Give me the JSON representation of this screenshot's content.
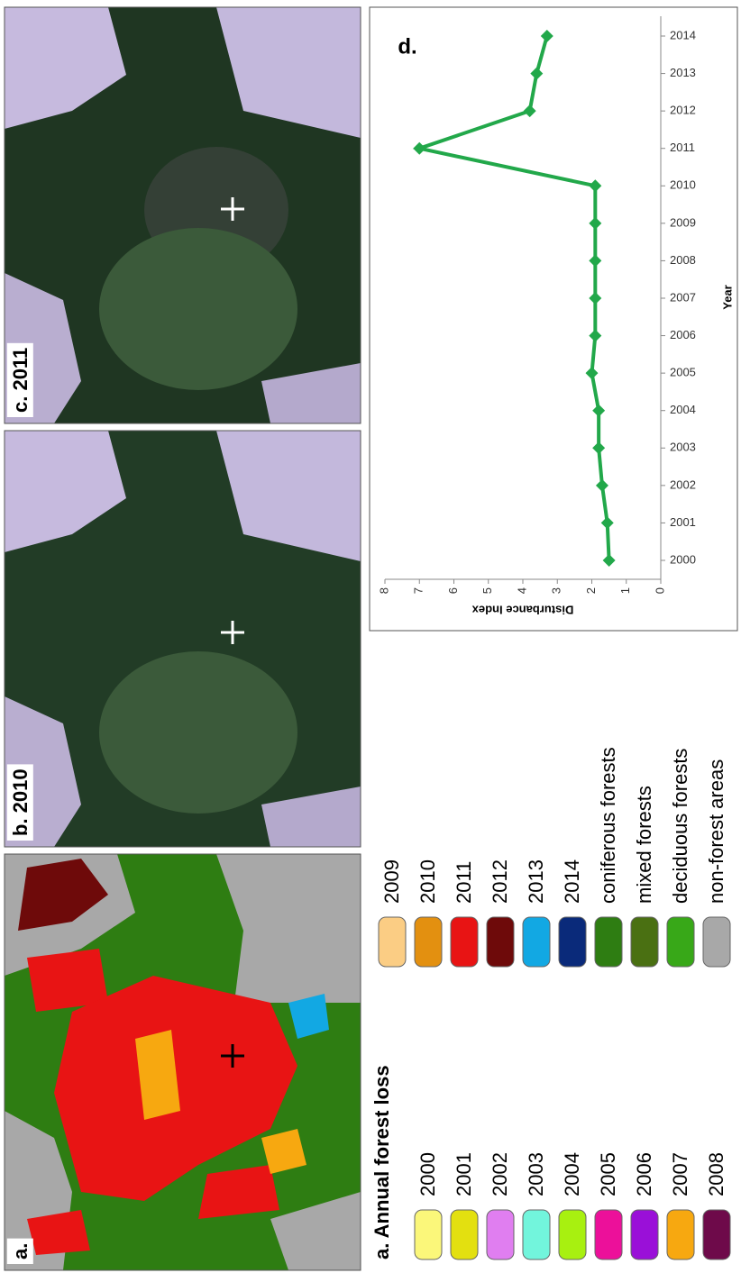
{
  "panels": [
    {
      "label": "a."
    },
    {
      "label": "b. 2010"
    },
    {
      "label": "c. 2011"
    }
  ],
  "legend": {
    "title": "a. Annual forest loss",
    "items": [
      {
        "label": "2000",
        "color": "#fbf77a"
      },
      {
        "label": "2001",
        "color": "#e3e010"
      },
      {
        "label": "2002",
        "color": "#e07ef0"
      },
      {
        "label": "2003",
        "color": "#72f5dc"
      },
      {
        "label": "2004",
        "color": "#a8f010"
      },
      {
        "label": "2005",
        "color": "#ec109a"
      },
      {
        "label": "2006",
        "color": "#9a10d8"
      },
      {
        "label": "2007",
        "color": "#f7a810"
      },
      {
        "label": "2008",
        "color": "#6e0a4a"
      },
      {
        "label": "2009",
        "color": "#fbcd84"
      },
      {
        "label": "2010",
        "color": "#e39010"
      },
      {
        "label": "2011",
        "color": "#e81414"
      },
      {
        "label": "2012",
        "color": "#6e0a0a"
      },
      {
        "label": "2013",
        "color": "#12a8e3"
      },
      {
        "label": "2014",
        "color": "#0a2a7a"
      },
      {
        "label": "coniferous forests",
        "color": "#2e7d12"
      },
      {
        "label": "mixed forests",
        "color": "#4a7012"
      },
      {
        "label": "deciduous forests",
        "color": "#38a818"
      },
      {
        "label": "non-forest areas",
        "color": "#a8a8a8"
      }
    ]
  },
  "chart_data": {
    "type": "line",
    "label": "d.",
    "xlabel": "Year",
    "ylabel": "Disturbance Index",
    "categories": [
      "2000",
      "2001",
      "2002",
      "2003",
      "2004",
      "2005",
      "2006",
      "2007",
      "2008",
      "2009",
      "2010",
      "2011",
      "2012",
      "2013",
      "2014"
    ],
    "values": [
      1.5,
      1.55,
      1.7,
      1.8,
      1.8,
      2.0,
      1.9,
      1.9,
      1.9,
      1.9,
      1.9,
      7.0,
      3.8,
      3.6,
      3.3
    ],
    "color": "#22a84a",
    "ylim": [
      0,
      8
    ],
    "yticks": [
      0,
      1,
      2,
      3,
      4,
      5,
      6,
      7,
      8
    ]
  }
}
